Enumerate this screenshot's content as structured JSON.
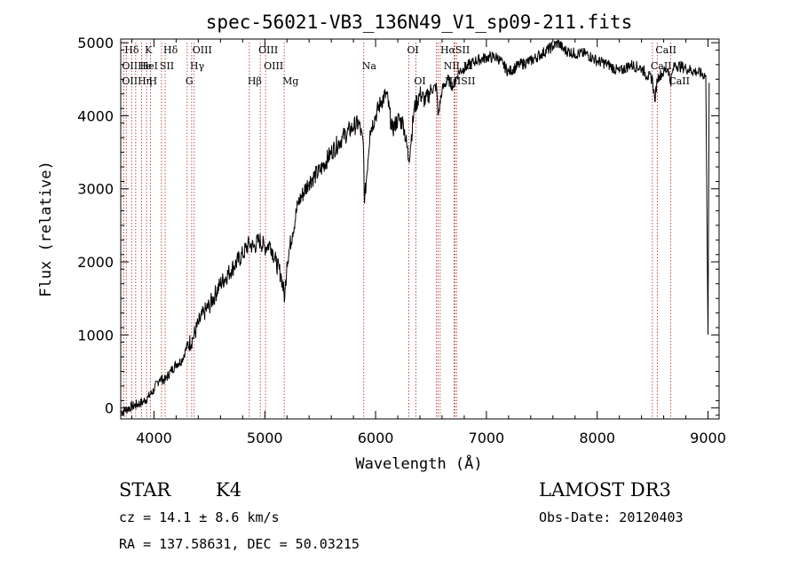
{
  "chart_data": {
    "type": "line",
    "title": "spec-56021-VB3_136N49_V1_sp09-211.fits",
    "xlabel": "Wavelength (Å)",
    "ylabel": "Flux (relative)",
    "xlim": [
      3700,
      9100
    ],
    "ylim": [
      -150,
      5050
    ],
    "xticks": [
      4000,
      5000,
      6000,
      7000,
      8000,
      9000
    ],
    "yticks": [
      0,
      1000,
      2000,
      3000,
      4000,
      5000
    ],
    "xtick_labels": [
      "4000",
      "5000",
      "6000",
      "7000",
      "8000",
      "9000"
    ],
    "ytick_labels": [
      "0",
      "1000",
      "2000",
      "3000",
      "4000",
      "5000"
    ],
    "line_color": "#000000",
    "marker_color": "#b22222",
    "series": [
      {
        "name": "flux",
        "x": [
          3700,
          3800,
          3900,
          3950,
          4000,
          4050,
          4100,
          4150,
          4200,
          4250,
          4300,
          4350,
          4400,
          4450,
          4500,
          4550,
          4600,
          4700,
          4800,
          4860,
          4900,
          4950,
          5000,
          5050,
          5100,
          5150,
          5180,
          5200,
          5250,
          5300,
          5400,
          5500,
          5600,
          5700,
          5800,
          5850,
          5890,
          5900,
          5950,
          6000,
          6050,
          6100,
          6150,
          6200,
          6250,
          6300,
          6350,
          6400,
          6450,
          6500,
          6550,
          6563,
          6600,
          6650,
          6700,
          6750,
          6800,
          6900,
          7000,
          7100,
          7150,
          7200,
          7300,
          7400,
          7500,
          7600,
          7650,
          7700,
          7800,
          7900,
          8000,
          8100,
          8200,
          8300,
          8400,
          8450,
          8500,
          8520,
          8542,
          8560,
          8600,
          8640,
          8662,
          8680,
          8700,
          8800,
          8900,
          8980,
          9000,
          9010
        ],
        "y": [
          -60,
          20,
          80,
          150,
          250,
          400,
          380,
          500,
          600,
          650,
          850,
          950,
          1150,
          1300,
          1400,
          1550,
          1700,
          1900,
          2100,
          2250,
          2200,
          2300,
          2200,
          2250,
          2000,
          1800,
          1500,
          2000,
          2400,
          2800,
          3100,
          3250,
          3500,
          3700,
          3850,
          3900,
          3600,
          2800,
          3800,
          4000,
          4200,
          4300,
          3800,
          3950,
          3900,
          3400,
          4100,
          4300,
          4200,
          4350,
          4400,
          4000,
          4350,
          4500,
          4400,
          4600,
          4650,
          4750,
          4800,
          4800,
          4700,
          4600,
          4700,
          4750,
          4850,
          4950,
          5000,
          4900,
          4850,
          4850,
          4750,
          4700,
          4600,
          4700,
          4650,
          4550,
          4500,
          4200,
          4500,
          4550,
          4600,
          4650,
          4450,
          4600,
          4700,
          4650,
          4600,
          4550,
          1000,
          4450
        ]
      }
    ],
    "spectral_lines": [
      {
        "label": "Hδ",
        "x": 3750,
        "row": 0
      },
      {
        "label": "K",
        "x": 3933,
        "row": 0
      },
      {
        "label": "Hδ",
        "x": 4101,
        "row": 0
      },
      {
        "label": "OIII",
        "x": 4363,
        "row": 0
      },
      {
        "label": "OIII",
        "x": 4959,
        "row": 0
      },
      {
        "label": "OI",
        "x": 6300,
        "row": 0
      },
      {
        "label": "HαSII",
        "x": 6600,
        "row": 0
      },
      {
        "label": "CaII",
        "x": 8542,
        "row": 0
      },
      {
        "label": "OIIHe",
        "x": 3727,
        "row": 1
      },
      {
        "label": "HeI",
        "x": 3889,
        "row": 1
      },
      {
        "label": "SII",
        "x": 4068,
        "row": 1
      },
      {
        "label": "Hγ",
        "x": 4340,
        "row": 1
      },
      {
        "label": "OIII",
        "x": 5007,
        "row": 1
      },
      {
        "label": "Na",
        "x": 5893,
        "row": 1
      },
      {
        "label": "NII Li",
        "x": 6630,
        "row": 1
      },
      {
        "label": "CaII",
        "x": 8498,
        "row": 1
      },
      {
        "label": "OIIHη",
        "x": 3727,
        "row": 2
      },
      {
        "label": "H",
        "x": 3968,
        "row": 2
      },
      {
        "label": "G",
        "x": 4300,
        "row": 2
      },
      {
        "label": "Hβ",
        "x": 4861,
        "row": 2
      },
      {
        "label": "Mg",
        "x": 5175,
        "row": 2
      },
      {
        "label": "OI",
        "x": 6363,
        "row": 2
      },
      {
        "label": "NIISII",
        "x": 6640,
        "row": 2
      },
      {
        "label": "CaII",
        "x": 8662,
        "row": 2
      }
    ],
    "marker_positions": [
      3727,
      3750,
      3798,
      3835,
      3889,
      3933,
      3968,
      4068,
      4101,
      4300,
      4340,
      4363,
      4861,
      4959,
      5007,
      5175,
      5893,
      6300,
      6363,
      6548,
      6563,
      6583,
      6708,
      6716,
      6731,
      8498,
      8542,
      8662
    ]
  },
  "info": {
    "object_type": "STAR",
    "subclass": "K4",
    "survey": "LAMOST DR3",
    "cz": "cz = 14.1 ± 8.6 km/s",
    "obs_date": "Obs-Date: 20120403",
    "coords": "RA = 137.58631, DEC =  50.03215"
  }
}
